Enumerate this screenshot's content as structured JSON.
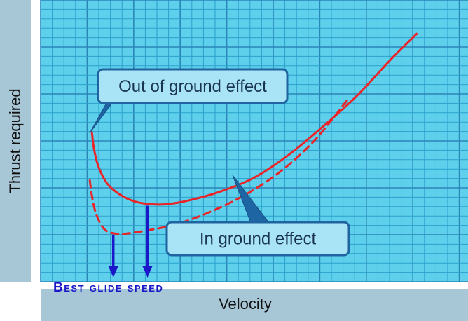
{
  "chart_data": {
    "type": "line",
    "title": "",
    "xlabel": "Velocity",
    "ylabel": "Thrust required",
    "xlim": [
      0,
      100
    ],
    "ylim": [
      0,
      100
    ],
    "grid": true,
    "series": [
      {
        "name": "Out of ground effect",
        "style": "solid",
        "color": "#e8262a",
        "x": [
          12,
          12.5,
          13.5,
          15.5,
          18.5,
          22,
          26,
          30,
          35,
          42,
          50,
          58,
          66,
          74,
          82,
          88
        ],
        "y": [
          53,
          47,
          41,
          35,
          31,
          28.5,
          27.5,
          27.6,
          29,
          32,
          37,
          45,
          55,
          66,
          79,
          88
        ]
      },
      {
        "name": "In ground effect",
        "style": "dashed",
        "color": "#e8262a",
        "x": [
          11.5,
          12,
          13,
          15,
          18,
          21,
          26,
          32,
          40,
          48,
          56,
          64,
          72
        ],
        "y": [
          36,
          30.5,
          24,
          18.5,
          17,
          17.3,
          18.5,
          20.5,
          25,
          31,
          39,
          50,
          65
        ]
      }
    ],
    "annotations": [
      {
        "text": "Out of ground effect",
        "target_series": 0
      },
      {
        "text": "In ground effect",
        "target_series": 1
      }
    ],
    "markers": {
      "label": "Best glide speed",
      "color": "#1a18c8",
      "x": [
        17,
        25
      ]
    }
  }
}
